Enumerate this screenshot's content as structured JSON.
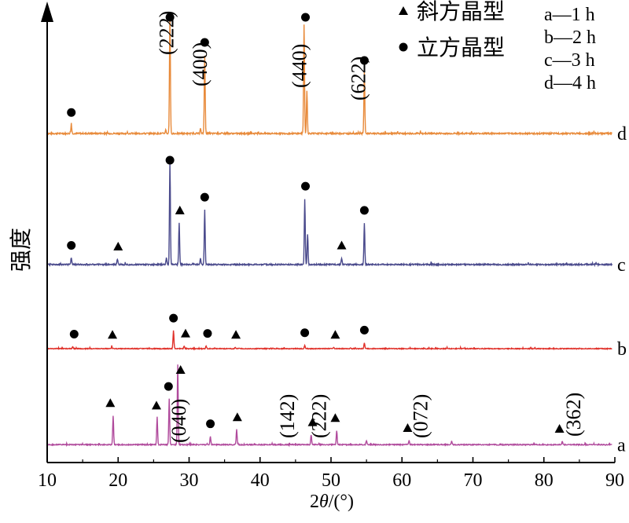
{
  "chart_data": {
    "type": "line",
    "title": "",
    "xlabel_main": "2",
    "xlabel_theta": "θ",
    "xlabel_rest": "/(°)",
    "ylabel": "强度",
    "xlim": [
      10,
      90
    ],
    "xticks": [
      10,
      20,
      30,
      40,
      50,
      60,
      70,
      80,
      90
    ],
    "grid": false,
    "legend": {
      "placement": "top-right",
      "markers": [
        {
          "symbol": "triangle",
          "label": "斜方晶型"
        },
        {
          "symbol": "circle",
          "label": "立方晶型"
        }
      ],
      "series_labels": [
        "a—1 h",
        "b—2 h",
        "c—3 h",
        "d—4 h"
      ]
    },
    "series": [
      {
        "name": "d",
        "color": "#E88A3A",
        "baseline": 0.89,
        "peaks": [
          [
            13.4,
            0.07
          ],
          [
            26.7,
            0.03
          ],
          [
            27.3,
            0.97
          ],
          [
            31.6,
            0.04
          ],
          [
            32.2,
            0.65
          ],
          [
            46.2,
            0.9
          ],
          [
            46.6,
            0.35
          ],
          [
            54.7,
            0.5
          ]
        ],
        "circles": [
          13.4,
          27.3,
          32.2,
          46.4,
          54.7
        ],
        "triangles": []
      },
      {
        "name": "c",
        "color": "#4A4A8C",
        "baseline": 0.89,
        "peaks": [
          [
            13.4,
            0.06
          ],
          [
            19.9,
            0.05
          ],
          [
            26.8,
            0.06
          ],
          [
            27.3,
            0.94
          ],
          [
            28.6,
            0.38
          ],
          [
            31.6,
            0.06
          ],
          [
            32.2,
            0.5
          ],
          [
            46.3,
            0.6
          ],
          [
            46.7,
            0.28
          ],
          [
            51.5,
            0.06
          ],
          [
            54.7,
            0.38
          ]
        ],
        "circles": [
          13.4,
          27.3,
          32.2,
          46.4,
          54.7
        ],
        "triangles": [
          20.0,
          28.7,
          51.5
        ]
      },
      {
        "name": "b",
        "color": "#E0312A",
        "baseline": 0.89,
        "peaks": [
          [
            13.6,
            0.03
          ],
          [
            19.1,
            0.02
          ],
          [
            27.8,
            0.27
          ],
          [
            29.3,
            0.04
          ],
          [
            32.4,
            0.04
          ],
          [
            36.5,
            0.02
          ],
          [
            46.3,
            0.05
          ],
          [
            50.4,
            0.02
          ],
          [
            54.7,
            0.09
          ]
        ],
        "circles": [
          13.8,
          27.8,
          32.6,
          46.3,
          54.7
        ],
        "triangles": [
          19.2,
          29.5,
          36.6,
          50.6
        ]
      },
      {
        "name": "a",
        "color": "#B04A9C",
        "baseline": 0.89,
        "peaks": [
          [
            19.3,
            0.35
          ],
          [
            25.5,
            0.32
          ],
          [
            27.2,
            0.55
          ],
          [
            28.4,
            0.96
          ],
          [
            33.0,
            0.1
          ],
          [
            36.7,
            0.18
          ],
          [
            47.2,
            0.12
          ],
          [
            50.8,
            0.17
          ],
          [
            55.0,
            0.05
          ],
          [
            61.0,
            0.05
          ],
          [
            67.0,
            0.04
          ],
          [
            82.6,
            0.04
          ]
        ],
        "circles": [
          27.1,
          33.0
        ],
        "triangles": [
          18.9,
          25.4,
          28.8,
          36.8,
          47.4,
          50.6,
          60.8,
          82.2
        ]
      }
    ],
    "annotations": [
      {
        "text": "(222)",
        "x": 27.8,
        "series": "d"
      },
      {
        "text": "(400)",
        "x": 32.5,
        "series": "d"
      },
      {
        "text": "(440)",
        "x": 46.5,
        "series": "d"
      },
      {
        "text": "(622)",
        "x": 54.8,
        "series": "d"
      },
      {
        "text": "(040)",
        "x": 29.5,
        "series": "a"
      },
      {
        "text": "(142)",
        "x": 44.8,
        "series": "a"
      },
      {
        "text": "(222)",
        "x": 49.3,
        "series": "a"
      },
      {
        "text": "(072)",
        "x": 63.6,
        "series": "a"
      },
      {
        "text": "(362)",
        "x": 85.1,
        "series": "a"
      }
    ]
  }
}
